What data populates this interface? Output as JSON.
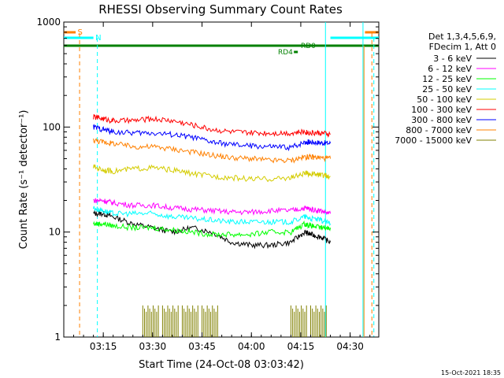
{
  "chart_data": {
    "type": "line",
    "title": "RHESSI Observing Summary Count Rates",
    "xlabel": "Start Time (24-Oct-08 03:03:42)",
    "ylabel": "Count Rate (s⁻¹ detector⁻¹)",
    "ylim": [
      1,
      1000
    ],
    "yscale": "log",
    "xlim": [
      3.05,
      4.645
    ],
    "x_ticks": [
      {
        "x": 3.25,
        "label": "03:15"
      },
      {
        "x": 3.5,
        "label": "03:30"
      },
      {
        "x": 3.75,
        "label": "03:45"
      },
      {
        "x": 4.0,
        "label": "04:00"
      },
      {
        "x": 4.25,
        "label": "04:15"
      },
      {
        "x": 4.5,
        "label": "04:30"
      }
    ],
    "y_ticks": [
      {
        "y": 1,
        "label": "1"
      },
      {
        "y": 10,
        "label": "10"
      },
      {
        "y": 100,
        "label": "100"
      },
      {
        "y": 1000,
        "label": "1000"
      }
    ],
    "legend_header": [
      "Det 1,3,4,5,6,9,",
      "FDecim 1, Att 0"
    ],
    "legend_position": "right",
    "series": [
      {
        "name": "3 - 6 keV",
        "color": "#000000",
        "x": [
          3.2,
          3.25,
          3.3,
          3.4,
          3.5,
          3.6,
          3.7,
          3.8,
          3.9,
          4.0,
          4.1,
          4.2,
          4.27,
          4.3,
          4.35,
          4.4
        ],
        "y": [
          15,
          15,
          14,
          12,
          11,
          10,
          11,
          10,
          8,
          7.5,
          7.5,
          8,
          10,
          9.5,
          9,
          8
        ]
      },
      {
        "name": "6 - 12 keV",
        "color": "#ff00ff",
        "x": [
          3.2,
          3.25,
          3.3,
          3.4,
          3.5,
          3.6,
          3.7,
          3.8,
          3.9,
          4.0,
          4.1,
          4.2,
          4.27,
          4.3,
          4.35,
          4.4
        ],
        "y": [
          20,
          20,
          19,
          18,
          18,
          17,
          16.5,
          16,
          15.5,
          15.5,
          16,
          16,
          17,
          16.5,
          16,
          15
        ]
      },
      {
        "name": "12 - 25 keV",
        "color": "#00ff00",
        "x": [
          3.2,
          3.25,
          3.3,
          3.4,
          3.5,
          3.6,
          3.7,
          3.8,
          3.9,
          4.0,
          4.1,
          4.2,
          4.27,
          4.3,
          4.35,
          4.4
        ],
        "y": [
          12,
          12,
          11.5,
          11,
          11,
          10.5,
          10,
          9.5,
          9.5,
          9.5,
          10,
          10,
          12,
          11.5,
          11,
          11
        ]
      },
      {
        "name": "25 - 50 keV",
        "color": "#00ffff",
        "x": [
          3.2,
          3.25,
          3.3,
          3.4,
          3.5,
          3.6,
          3.7,
          3.8,
          3.9,
          4.0,
          4.1,
          4.2,
          4.27,
          4.3,
          4.35,
          4.4
        ],
        "y": [
          17,
          16,
          15,
          15,
          15,
          14,
          13.5,
          13,
          12.5,
          12.5,
          12.5,
          12.5,
          14,
          13.5,
          13,
          12
        ]
      },
      {
        "name": "50 - 100 keV",
        "color": "#d4cc00",
        "x": [
          3.2,
          3.25,
          3.3,
          3.4,
          3.5,
          3.6,
          3.7,
          3.8,
          3.9,
          4.0,
          4.1,
          4.2,
          4.27,
          4.3,
          4.35,
          4.4
        ],
        "y": [
          42,
          39,
          38,
          40,
          41,
          39,
          36,
          34,
          33,
          32,
          32,
          33,
          36,
          36,
          35,
          34
        ]
      },
      {
        "name": "100 - 300 keV",
        "color": "#ff0000",
        "x": [
          3.2,
          3.25,
          3.3,
          3.4,
          3.5,
          3.6,
          3.7,
          3.8,
          3.9,
          4.0,
          4.1,
          4.2,
          4.27,
          4.3,
          4.35,
          4.4
        ],
        "y": [
          125,
          120,
          115,
          115,
          120,
          115,
          105,
          95,
          90,
          88,
          88,
          88,
          90,
          88,
          88,
          85
        ]
      },
      {
        "name": "300 - 800 keV",
        "color": "#0000ff",
        "x": [
          3.2,
          3.25,
          3.3,
          3.4,
          3.5,
          3.6,
          3.7,
          3.8,
          3.9,
          4.0,
          4.1,
          4.2,
          4.27,
          4.3,
          4.35,
          4.4
        ],
        "y": [
          100,
          95,
          90,
          88,
          88,
          85,
          80,
          72,
          68,
          66,
          65,
          64,
          72,
          72,
          71,
          70
        ]
      },
      {
        "name": "800 - 7000 keV",
        "color": "#ff8000",
        "x": [
          3.2,
          3.25,
          3.3,
          3.4,
          3.5,
          3.6,
          3.7,
          3.8,
          3.9,
          4.0,
          4.1,
          4.2,
          4.27,
          4.3,
          4.35,
          4.4
        ],
        "y": [
          75,
          72,
          70,
          65,
          65,
          62,
          58,
          54,
          51,
          50,
          48,
          48,
          52,
          52,
          51,
          50
        ]
      },
      {
        "name": "7000 - 15000 keV",
        "color": "#808000",
        "x": [
          3.45,
          3.55,
          3.65,
          3.75,
          4.2,
          4.3
        ],
        "y": [
          2,
          2,
          2,
          2,
          2,
          2
        ]
      }
    ],
    "status_bars": [
      {
        "label": "S",
        "color": "#ff8000"
      },
      {
        "label": "N",
        "color": "#00ffff"
      },
      {
        "label": "RD0",
        "color": "#008000"
      },
      {
        "label": "RD4",
        "color": "#008000"
      }
    ]
  },
  "footer": {
    "timestamp": "15-Oct-2021 18:35"
  }
}
